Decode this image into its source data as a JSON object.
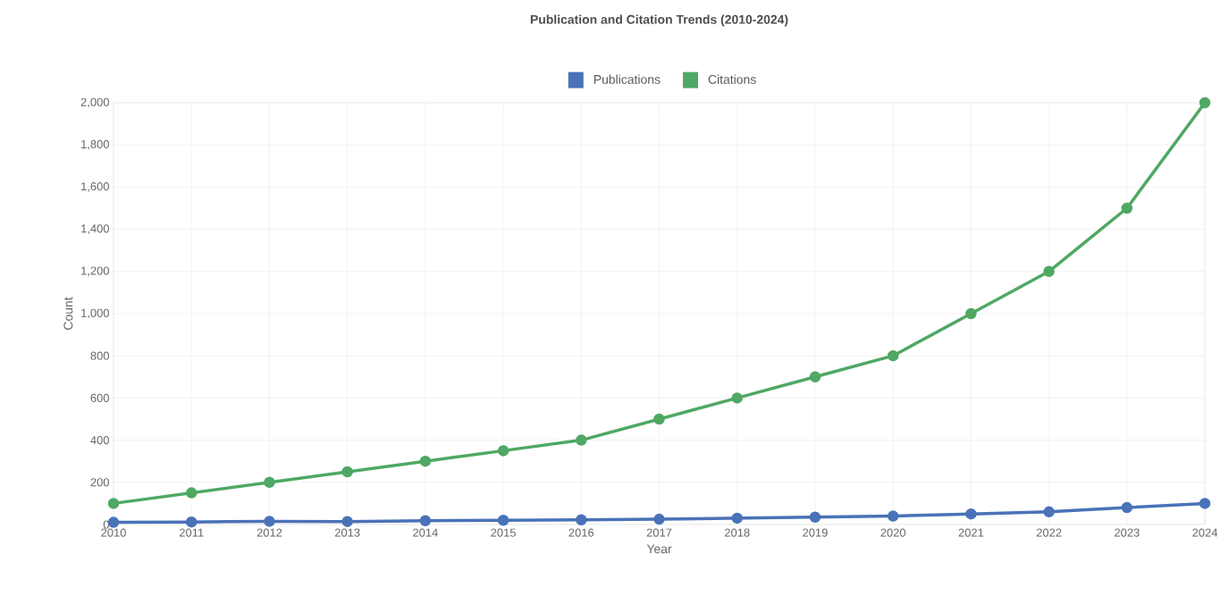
{
  "chart_data": {
    "type": "line",
    "title": "Publication and Citation Trends (2010-2024)",
    "xlabel": "Year",
    "ylabel": "Count",
    "categories": [
      "2010",
      "2011",
      "2012",
      "2013",
      "2014",
      "2015",
      "2016",
      "2017",
      "2018",
      "2019",
      "2020",
      "2021",
      "2022",
      "2023",
      "2024"
    ],
    "series": [
      {
        "name": "Publications",
        "color": "#4a72b8",
        "values": [
          10,
          12,
          15,
          14,
          18,
          20,
          22,
          25,
          30,
          35,
          40,
          50,
          60,
          80,
          100
        ]
      },
      {
        "name": "Citations",
        "color": "#4fa863",
        "values": [
          100,
          150,
          200,
          250,
          300,
          350,
          400,
          500,
          600,
          700,
          800,
          1000,
          1200,
          1500,
          2000
        ]
      }
    ],
    "ylim": [
      0,
      2000
    ],
    "yticks": [
      {
        "value": 0,
        "label": "0"
      },
      {
        "value": 200,
        "label": "200"
      },
      {
        "value": 400,
        "label": "400"
      },
      {
        "value": 600,
        "label": "600"
      },
      {
        "value": 800,
        "label": "800"
      },
      {
        "value": 1000,
        "label": "1,000"
      },
      {
        "value": 1200,
        "label": "1,200"
      },
      {
        "value": 1400,
        "label": "1,400"
      },
      {
        "value": 1600,
        "label": "1,600"
      },
      {
        "value": 1800,
        "label": "1,800"
      },
      {
        "value": 2000,
        "label": "2,000"
      }
    ],
    "grid": true,
    "legend": "top",
    "marker": "circle",
    "line_style": "solid"
  }
}
